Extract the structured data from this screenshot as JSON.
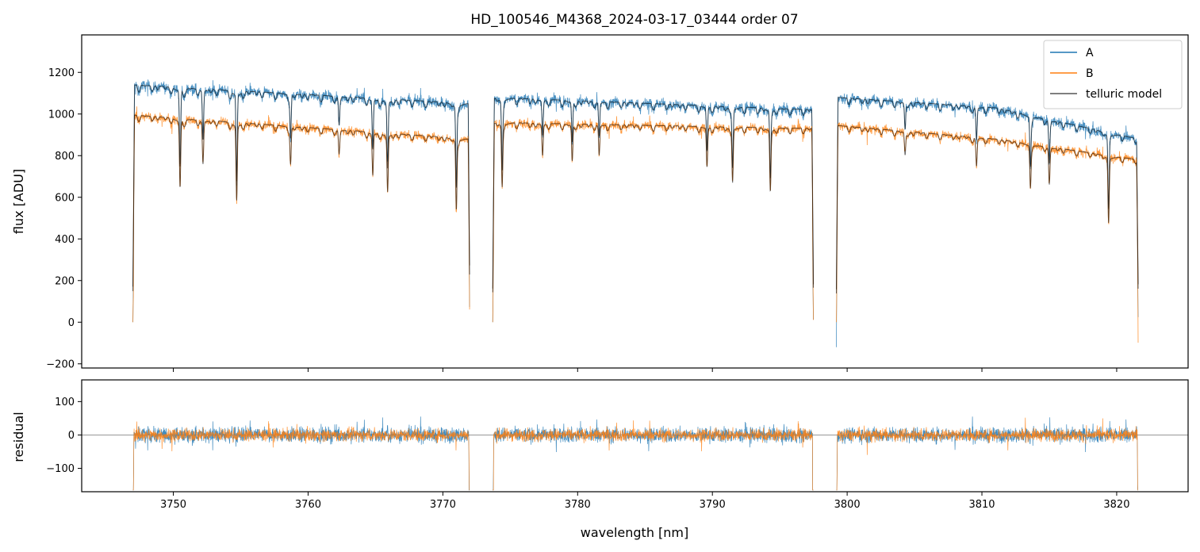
{
  "chart_data": [
    {
      "type": "line",
      "panel": "spectrum",
      "title": "HD_100546_M4368_2024-03-17_03444  order 07",
      "xlabel": "",
      "ylabel": "flux [ADU]",
      "xlim": [
        3743.2,
        3825.3
      ],
      "ylim": [
        -220,
        1380
      ],
      "yticks": [
        -200,
        0,
        200,
        400,
        600,
        800,
        1000,
        1200
      ],
      "xticks": [
        3750,
        3760,
        3770,
        3780,
        3790,
        3800,
        3810,
        3820
      ],
      "legend": {
        "placement": "top-right",
        "entries": [
          "A",
          "B",
          "telluric model"
        ]
      },
      "segments": [
        [
          3747.0,
          3772.0
        ],
        [
          3773.7,
          3797.5
        ],
        [
          3799.2,
          3821.6
        ]
      ],
      "absorption_lines": [
        {
          "x": 3750.5,
          "depth": 0.33
        },
        {
          "x": 3752.2,
          "depth": 0.2
        },
        {
          "x": 3754.7,
          "depth": 0.38
        },
        {
          "x": 3758.7,
          "depth": 0.18
        },
        {
          "x": 3762.3,
          "depth": 0.12
        },
        {
          "x": 3764.8,
          "depth": 0.22
        },
        {
          "x": 3765.9,
          "depth": 0.3
        },
        {
          "x": 3771.0,
          "depth": 0.37
        },
        {
          "x": 3774.4,
          "depth": 0.3
        },
        {
          "x": 3777.4,
          "depth": 0.15
        },
        {
          "x": 3779.6,
          "depth": 0.18
        },
        {
          "x": 3781.6,
          "depth": 0.15
        },
        {
          "x": 3789.6,
          "depth": 0.2
        },
        {
          "x": 3791.5,
          "depth": 0.27
        },
        {
          "x": 3794.3,
          "depth": 0.31
        },
        {
          "x": 3804.3,
          "depth": 0.12
        },
        {
          "x": 3809.6,
          "depth": 0.15
        },
        {
          "x": 3813.6,
          "depth": 0.22
        },
        {
          "x": 3815.0,
          "depth": 0.2
        },
        {
          "x": 3819.4,
          "depth": 0.38
        }
      ],
      "series": [
        {
          "name": "A",
          "color": "#1f77b4",
          "continuum": [
            [
              3747.0,
              1140
            ],
            [
              3772.0,
              1050
            ],
            [
              3773.7,
              1080
            ],
            [
              3797.5,
              1020
            ],
            [
              3799.2,
              1080
            ],
            [
              3811.0,
              1030
            ],
            [
              3821.6,
              880
            ]
          ]
        },
        {
          "name": "B",
          "color": "#ff7f0e",
          "continuum": [
            [
              3747.0,
              995
            ],
            [
              3772.0,
              880
            ],
            [
              3773.7,
              960
            ],
            [
              3797.5,
              930
            ],
            [
              3799.2,
              945
            ],
            [
              3811.0,
              880
            ],
            [
              3821.6,
              780
            ]
          ]
        },
        {
          "name": "telluric model",
          "color": "#000000"
        }
      ]
    },
    {
      "type": "line",
      "panel": "residual",
      "xlabel": "wavelength [nm]",
      "ylabel": "residual",
      "xlim": [
        3743.2,
        3825.3
      ],
      "ylim": [
        -170,
        165
      ],
      "yticks": [
        -100,
        0,
        100
      ],
      "xticks": [
        3750,
        3760,
        3770,
        3780,
        3790,
        3800,
        3810,
        3820
      ],
      "zero_line": 0,
      "series": [
        {
          "name": "A",
          "color": "#1f77b4"
        },
        {
          "name": "B",
          "color": "#ff7f0e"
        }
      ]
    }
  ]
}
